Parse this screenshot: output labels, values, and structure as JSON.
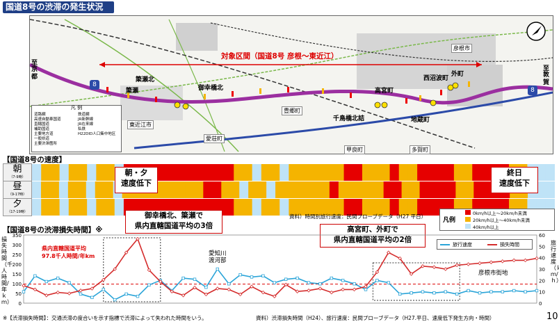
{
  "title": "国道8号の渋滞の発生状況",
  "map": {
    "section_label": "対象区間（国道8号 彦根～東近江）",
    "left_dest_1": "至",
    "left_dest_2": "京都",
    "right_dest_1": "至",
    "right_dest_2": "敦賀",
    "route_shield": "8",
    "route_shield_right": "8",
    "spot_labels": [
      "簗瀬北",
      "簗瀬",
      "御幸橋北",
      "高宮町",
      "千鳥橋北詰",
      "西沼波町",
      "外町",
      "地蔵町"
    ],
    "city_labels": [
      "東近江市",
      "愛荘町",
      "豊郷町",
      "甲良町",
      "多賀町",
      "彦根市"
    ],
    "legend_title": "凡 例",
    "legend_items": [
      "道路網",
      "高速自動車国道",
      "直轄国道",
      "補助国道",
      "主要地方道",
      "一般県道",
      "主要渋滞箇所"
    ],
    "legend_items_rail": [
      "鉄道網",
      "JR新幹線",
      "JR在来線",
      "私鉄",
      "H22DID人口集中地区"
    ]
  },
  "speed_section": {
    "header": "【国道8号の速度】",
    "rows": [
      {
        "label": "朝",
        "time": "（7-9時）"
      },
      {
        "label": "昼",
        "time": "（9-17時）"
      },
      {
        "label": "夕",
        "time": "（17-19時）"
      }
    ],
    "callout_left": "朝・夕\n速度低下",
    "callout_right": "終日\n速度低下",
    "source": "資料）時間別旅行速度：民間プローブデータ（H27 平日）",
    "legend_title": "凡例",
    "legend": [
      {
        "label": "0km/h以上～20km/h未満",
        "color": "#e60000"
      },
      {
        "label": "20km/h以上～40km/h未満",
        "color": "#f5b400"
      },
      {
        "label": "40km/h以上",
        "color": "#bfe3f7"
      }
    ],
    "colors": {
      "red": "#e60000",
      "orange": "#f5b400",
      "blue": "#bfe3f7"
    }
  },
  "loss_section": {
    "header": "【国道8号の渋滞損失時間】※",
    "callout_mid": "御幸橋北、簗瀬で\n県内直轄国道平均の3倍",
    "callout_right": "高宮町、外町で\n県内直轄国道平均の2倍",
    "avg_label_1": "県内直轄国道平均",
    "avg_label_2": "97.8千人時間/年km",
    "annot_1": "愛知川",
    "annot_2": "渡河部",
    "annot_3": "彦根市街地",
    "left_axis_label": "損失時間（千人時間/年ｋｍ）",
    "right_axis_label": "旅行速度（ｋｍ/ｈ）",
    "footnote": "※【渋滞損失時間】：交通渋滞の度合いを示す指標で渋滞によって失われた時間をいう。",
    "source": "資料）渋滞損失時間（H24）、旅行速度：民間プローブデータ（H27.平日、速度低下発生方向・時間）",
    "page_number": "10"
  },
  "chart_data": {
    "type": "line",
    "title": "",
    "x": [
      1,
      2,
      3,
      4,
      5,
      6,
      7,
      8,
      9,
      10,
      11,
      12,
      13,
      14,
      15,
      16,
      17,
      18,
      19,
      20,
      21,
      22,
      23,
      24,
      25,
      26,
      27,
      28,
      29,
      30,
      31,
      32,
      33,
      34,
      35,
      36,
      37,
      38,
      39,
      40,
      41,
      42,
      43,
      44,
      45,
      46
    ],
    "series": [
      {
        "name": "旅行速度",
        "axis": "right",
        "color": "#2aa4d8",
        "values": [
          10,
          24,
          19,
          22,
          18,
          8,
          5,
          12,
          3,
          8,
          6,
          16,
          20,
          11,
          22,
          21,
          14,
          30,
          17,
          25,
          23,
          24,
          18,
          21,
          22,
          18,
          17,
          22,
          20,
          17,
          12,
          20,
          18,
          8,
          9,
          10,
          9,
          10,
          8,
          11,
          9,
          10,
          10,
          11,
          10,
          11
        ]
      },
      {
        "name": "損失時間",
        "axis": "left",
        "color": "#d42b2b",
        "values": [
          90,
          70,
          40,
          55,
          50,
          65,
          75,
          120,
          175,
          260,
          330,
          170,
          110,
          60,
          40,
          80,
          45,
          75,
          70,
          45,
          85,
          55,
          35,
          95,
          60,
          65,
          75,
          55,
          70,
          70,
          85,
          160,
          260,
          230,
          150,
          190,
          185,
          175,
          195,
          200,
          205,
          210,
          215,
          220,
          220,
          230
        ]
      }
    ],
    "reference_line": {
      "value": 97.8,
      "axis": "left"
    },
    "ylim_left": [
      0,
      350
    ],
    "ylim_right": [
      0,
      60
    ],
    "yticks_left": [
      0,
      50,
      100,
      150,
      200,
      250,
      300,
      350
    ],
    "yticks_right": [
      0,
      10,
      20,
      30,
      40,
      50,
      60
    ],
    "legend": [
      "旅行速度",
      "損失時間"
    ]
  }
}
